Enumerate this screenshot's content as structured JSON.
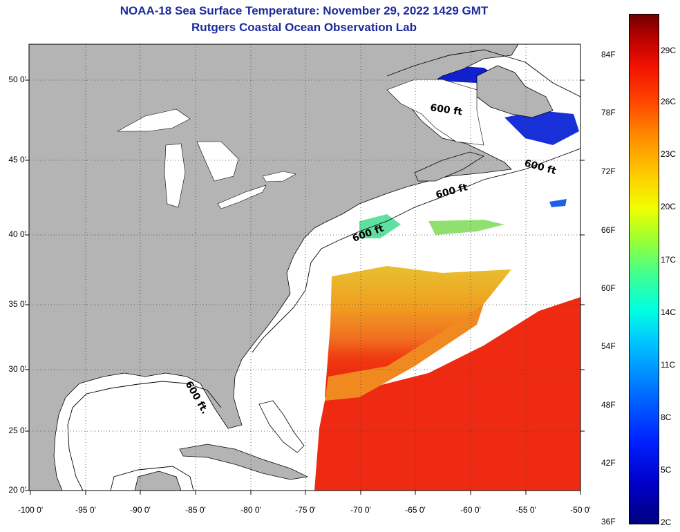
{
  "title": {
    "line1": "NOAA-18 Sea Surface Temperature:  November 29, 2022 1429 GMT",
    "line2": "Rutgers Coastal Ocean Observation Lab"
  },
  "latitude_labels": [
    "50 0'",
    "45 0'",
    "40 0'",
    "35 0'",
    "30 0'",
    "25 0'",
    "20 0'"
  ],
  "longitude_labels": [
    "-100 0'",
    "-95 0'",
    "-90 0'",
    "-85 0'",
    "-80 0'",
    "-75 0'",
    "-70 0'",
    "-65 0'",
    "-60 0'",
    "-55 0'",
    "-50 0'"
  ],
  "contour_labels": [
    "600 ft",
    "600 ft",
    "600 ft",
    "600 ft",
    "600 ft."
  ],
  "colorbar": {
    "fahrenheit_labels": [
      "84F",
      "78F",
      "72F",
      "66F",
      "60F",
      "54F",
      "48F",
      "42F",
      "36F"
    ],
    "celsius_labels": [
      "29C",
      "26C",
      "23C",
      "20C",
      "17C",
      "14C",
      "11C",
      "8C",
      "5C",
      "2C"
    ]
  },
  "colors": {
    "title": "#1a2a9a",
    "land": "#b4b4b4",
    "ocean_no_data": "#ffffff",
    "warm_sst": "#f02a10",
    "mid_sst": "#f0a020",
    "cold_sst": "#1020d0"
  }
}
